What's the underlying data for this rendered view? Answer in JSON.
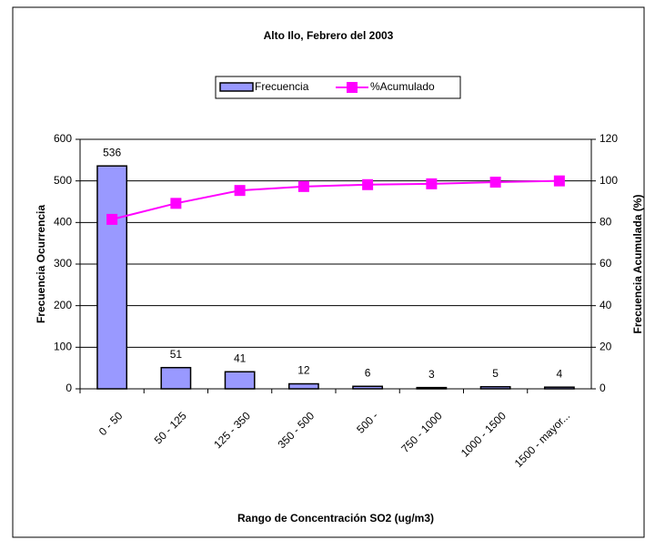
{
  "chart_data": {
    "type": "bar-line",
    "title": "Alto Ilo, Febrero del 2003",
    "x_label": "Rango de Concentración SO2 (ug/m3)",
    "y_label": "Frecuencia Ocurrencia",
    "y2_label": "Frecuencia Acumulada (%)",
    "categories": [
      "0 - 50",
      "50 - 125",
      "125 - 350",
      "350 - 500",
      "500 -",
      "750 - 1000",
      "1000 - 1500",
      "1500 - mayor..."
    ],
    "series": [
      {
        "name": "Frecuencia",
        "type": "bar",
        "color": "#9999ff",
        "values": [
          536,
          51,
          41,
          12,
          6,
          3,
          5,
          4
        ]
      },
      {
        "name": "%Acumulado",
        "type": "line",
        "color": "#ff00ff",
        "axis": "y2",
        "values": [
          81.5,
          89.2,
          95.4,
          97.3,
          98.2,
          98.6,
          99.4,
          100
        ]
      }
    ],
    "ylim": [
      0,
      600
    ],
    "yticks": [
      0,
      100,
      200,
      300,
      400,
      500,
      600
    ],
    "y2lim": [
      0,
      120
    ],
    "y2ticks": [
      0,
      20,
      40,
      60,
      80,
      100,
      120
    ],
    "grid": true,
    "legend": "top"
  }
}
